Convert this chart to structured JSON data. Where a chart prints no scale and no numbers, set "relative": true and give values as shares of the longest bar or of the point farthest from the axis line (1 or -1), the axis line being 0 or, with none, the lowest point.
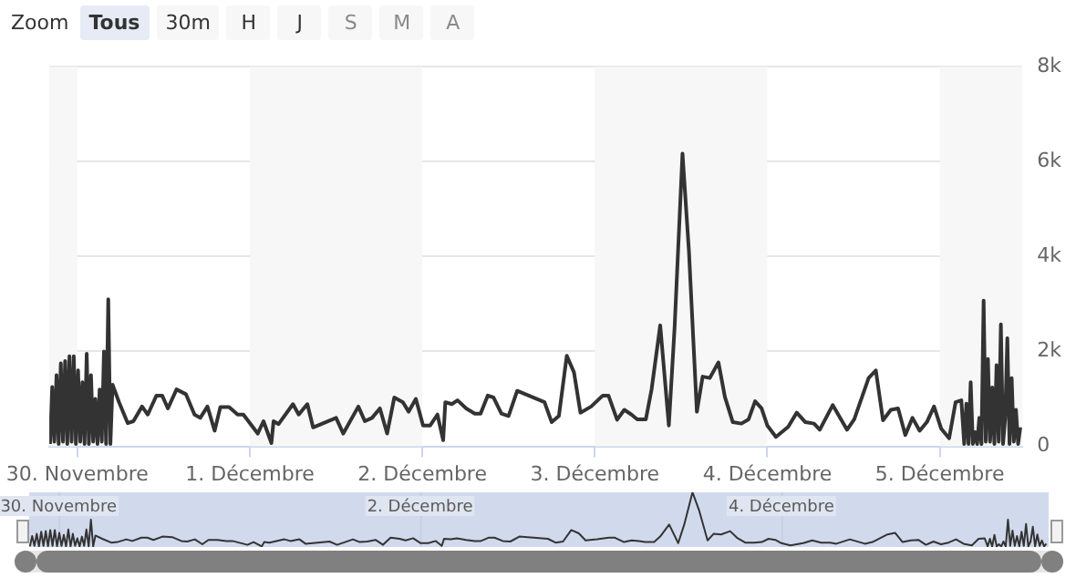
{
  "chart_data": [
    {
      "type": "line",
      "x": [
        "--11-29T20:12",
        "--11-29T20:30",
        "--11-29T20:48",
        "--11-29T21:06",
        "--11-29T21:24",
        "--11-29T21:42",
        "--11-29T22:00",
        "--11-29T22:18",
        "--11-29T22:36",
        "--11-29T22:54",
        "--11-29T23:12",
        "--11-29T23:30",
        "--11-29T23:48",
        "--11-30T00:06",
        "--11-30T00:24",
        "--11-30T00:42",
        "--11-30T01:00",
        "--11-30T01:18",
        "--11-30T01:36",
        "--11-30T01:54",
        "--11-30T02:12",
        "--11-30T02:30",
        "--11-30T02:48",
        "--11-30T03:06",
        "--11-30T03:24",
        "--11-30T03:42",
        "--11-30T04:00",
        "--11-30T04:18",
        "--11-30T04:36",
        "--11-30T04:54",
        "--11-30T05:48",
        "--11-30T07:00",
        "--11-30T07:48",
        "--11-30T09:00",
        "--11-30T09:48",
        "--11-30T11:00",
        "--11-30T11:48",
        "--11-30T12:36",
        "--11-30T13:48",
        "--11-30T15:06",
        "--11-30T16:18",
        "--11-30T17:06",
        "--11-30T18:06",
        "--11-30T19:06",
        "--11-30T19:54",
        "--11-30T21:06",
        "--11-30T22:18",
        "--11-30T23:06",
        "--12-01T01:06",
        "--12-01T01:54",
        "--12-01T03:00",
        "--12-01T03:18",
        "--12-01T04:00",
        "--12-01T06:00",
        "--12-01T06:48",
        "--12-01T08:00",
        "--12-01T08:48",
        "--12-01T12:00",
        "--12-01T13:00",
        "--12-01T15:06",
        "--12-01T16:00",
        "--12-01T17:00",
        "--12-01T18:06",
        "--12-01T19:06",
        "--12-01T20:06",
        "--12-01T21:18",
        "--12-01T22:06",
        "--12-01T23:06",
        "--12-02T00:06",
        "--12-02T01:06",
        "--12-02T02:06",
        "--12-02T02:54",
        "--12-02T03:12",
        "--12-02T04:06",
        "--12-02T04:54",
        "--12-02T06:06",
        "--12-02T07:18",
        "--12-02T08:06",
        "--12-02T09:06",
        "--12-02T09:54",
        "--12-02T11:00",
        "--12-02T12:00",
        "--12-02T13:12",
        "--12-02T17:00",
        "--12-02T18:00",
        "--12-02T19:00",
        "--12-02T20:06",
        "--12-02T21:06",
        "--12-02T22:00",
        "--12-02T23:30",
        "--12-03T01:06",
        "--12-03T01:54",
        "--12-03T03:06",
        "--12-03T04:06",
        "--12-03T05:06",
        "--12-03T05:54",
        "--12-03T07:06",
        "--12-03T07:54",
        "--12-03T09:06",
        "--12-03T10:18",
        "--12-03T11:06",
        "--12-03T12:12",
        "--12-03T13:06",
        "--12-03T14:12",
        "--12-03T15:00",
        "--12-03T16:00",
        "--12-03T17:12",
        "--12-03T18:06",
        "--12-03T19:12",
        "--12-03T20:24",
        "--12-03T21:24",
        "--12-03T22:18",
        "--12-03T23:12",
        "--12-04T00:00",
        "--12-04T01:12",
        "--12-04T02:54",
        "--12-04T04:06",
        "--12-04T05:18",
        "--12-04T06:30",
        "--12-04T07:18",
        "--12-04T09:06",
        "--12-04T11:06",
        "--12-04T12:06",
        "--12-04T14:06",
        "--12-04T15:06",
        "--12-04T16:06",
        "--12-04T17:12",
        "--12-04T18:12",
        "--12-04T19:12",
        "--12-04T20:12",
        "--12-04T21:12",
        "--12-04T22:12",
        "--12-04T23:12",
        "--12-05T00:12",
        "--12-05T01:18",
        "--12-05T02:12",
        "--12-05T03:00",
        "--12-05T03:24",
        "--12-05T03:42",
        "--12-05T04:00",
        "--12-05T04:18",
        "--12-05T04:36",
        "--12-05T04:54",
        "--12-05T05:12",
        "--12-05T05:30",
        "--12-05T05:48",
        "--12-05T06:06",
        "--12-05T06:24",
        "--12-05T06:42",
        "--12-05T07:00",
        "--12-05T07:18",
        "--12-05T07:36",
        "--12-05T07:54",
        "--12-05T08:12",
        "--12-05T08:30",
        "--12-05T08:48",
        "--12-05T09:06",
        "--12-05T09:24",
        "--12-05T09:42",
        "--12-05T10:00",
        "--12-05T10:18",
        "--12-05T10:36",
        "--12-05T10:54",
        "--12-05T11:12"
      ],
      "series": [
        {
          "color": "#333333",
          "values": [
            50,
            1250,
            100,
            1500,
            50,
            1750,
            100,
            1800,
            50,
            1900,
            100,
            1900,
            50,
            1600,
            100,
            1350,
            50,
            1950,
            50,
            1500,
            100,
            1000,
            50,
            1200,
            100,
            2000,
            50,
            3100,
            50,
            1300,
            930,
            490,
            530,
            840,
            670,
            1070,
            1070,
            800,
            1200,
            1100,
            670,
            600,
            840,
            330,
            830,
            830,
            670,
            670,
            270,
            530,
            70,
            530,
            470,
            890,
            670,
            890,
            400,
            600,
            270,
            840,
            530,
            600,
            800,
            270,
            1030,
            930,
            730,
            1000,
            440,
            440,
            670,
            130,
            930,
            890,
            970,
            800,
            690,
            690,
            1070,
            1030,
            690,
            640,
            1170,
            930,
            510,
            640,
            1910,
            1560,
            710,
            840,
            1070,
            1070,
            560,
            770,
            670,
            570,
            570,
            1200,
            2550,
            440,
            2500,
            6170,
            4100,
            730,
            1470,
            1440,
            1770,
            1040,
            510,
            480,
            570,
            950,
            800,
            440,
            200,
            410,
            710,
            510,
            480,
            350,
            870,
            350,
            570,
            1440,
            1600,
            550,
            770,
            800,
            240,
            600,
            330,
            510,
            840,
            370,
            170,
            930,
            970,
            50,
            900,
            50,
            1350,
            50,
            300,
            50,
            600,
            50,
            3070,
            100,
            1840,
            100,
            1240,
            50,
            1710,
            100,
            2570,
            50,
            600,
            2280,
            50,
            1440,
            100,
            770,
            50,
            400
          ]
        }
      ],
      "xlim": [
        "--11-29T20:06",
        "--12-05T11:30"
      ],
      "xticks": [
        {
          "value": "--11-30",
          "label": "30. Novembre"
        },
        {
          "value": "--12-01",
          "label": "1. Décembre"
        },
        {
          "value": "--12-02",
          "label": "2. Décembre"
        },
        {
          "value": "--12-03",
          "label": "3. Décembre"
        },
        {
          "value": "--12-04",
          "label": "4. Décembre"
        },
        {
          "value": "--12-05",
          "label": "5. Décembre"
        }
      ],
      "ylim": [
        0,
        8000
      ],
      "yticks": [
        0,
        {
          "value": 2000,
          "label": "2k"
        },
        {
          "value": 4000,
          "label": "4k"
        },
        {
          "value": 6000,
          "label": "6k"
        },
        {
          "value": 8000,
          "label": "8k"
        }
      ],
      "bands": [
        {
          "axis": "x",
          "from": "--11-29T20:06",
          "to": "--11-30",
          "color": "#f7f7f7"
        },
        {
          "axis": "x",
          "from": "--12-01",
          "to": "--12-02",
          "color": "#f7f7f7"
        },
        {
          "axis": "x",
          "from": "--12-03",
          "to": "--12-04",
          "color": "#f7f7f7"
        },
        {
          "axis": "x",
          "from": "--12-05",
          "to": "--12-05T11:30",
          "color": "#f7f7f7"
        }
      ],
      "grid": "y",
      "marker": "none",
      "line_style": "solid",
      "annotations": [
        "Zoom",
        "Tous",
        "30m",
        "H",
        "J",
        "S",
        "M",
        "A"
      ]
    },
    {
      "type": "line",
      "x": [
        "--11-29T20:12",
        "--11-29T20:30",
        "--11-29T20:48",
        "--11-29T21:06",
        "--11-29T21:24",
        "--11-29T21:42",
        "--11-29T22:00",
        "--11-29T22:18",
        "--11-29T22:36",
        "--11-29T22:54",
        "--11-29T23:12",
        "--11-29T23:30",
        "--11-29T23:48",
        "--11-30T00:06",
        "--11-30T00:24",
        "--11-30T00:42",
        "--11-30T01:00",
        "--11-30T01:18",
        "--11-30T01:36",
        "--11-30T01:54",
        "--11-30T02:12",
        "--11-30T02:30",
        "--11-30T02:48",
        "--11-30T03:06",
        "--11-30T03:24",
        "--11-30T03:42",
        "--11-30T04:00",
        "--11-30T04:18",
        "--11-30T04:36",
        "--11-30T04:54",
        "--11-30T05:48",
        "--11-30T07:00",
        "--11-30T07:48",
        "--11-30T09:00",
        "--11-30T09:48",
        "--11-30T11:00",
        "--11-30T11:48",
        "--11-30T12:36",
        "--11-30T13:48",
        "--11-30T15:06",
        "--11-30T16:18",
        "--11-30T17:06",
        "--11-30T18:06",
        "--11-30T19:06",
        "--11-30T19:54",
        "--11-30T21:06",
        "--11-30T22:18",
        "--11-30T23:06",
        "--12-01T01:06",
        "--12-01T01:54",
        "--12-01T03:00",
        "--12-01T03:18",
        "--12-01T04:00",
        "--12-01T06:00",
        "--12-01T06:48",
        "--12-01T08:00",
        "--12-01T08:48",
        "--12-01T12:00",
        "--12-01T13:00",
        "--12-01T15:06",
        "--12-01T16:00",
        "--12-01T17:00",
        "--12-01T18:06",
        "--12-01T19:06",
        "--12-01T20:06",
        "--12-01T21:18",
        "--12-01T22:06",
        "--12-01T23:06",
        "--12-02T00:06",
        "--12-02T01:06",
        "--12-02T02:06",
        "--12-02T02:54",
        "--12-02T03:12",
        "--12-02T04:06",
        "--12-02T04:54",
        "--12-02T06:06",
        "--12-02T07:18",
        "--12-02T08:06",
        "--12-02T09:06",
        "--12-02T09:54",
        "--12-02T11:00",
        "--12-02T12:00",
        "--12-02T13:12",
        "--12-02T17:00",
        "--12-02T18:00",
        "--12-02T19:00",
        "--12-02T20:06",
        "--12-02T21:06",
        "--12-02T22:00",
        "--12-02T23:30",
        "--12-03T01:06",
        "--12-03T01:54",
        "--12-03T03:06",
        "--12-03T04:06",
        "--12-03T05:06",
        "--12-03T05:54",
        "--12-03T07:06",
        "--12-03T07:54",
        "--12-03T09:06",
        "--12-03T10:18",
        "--12-03T11:06",
        "--12-03T12:12",
        "--12-03T13:06",
        "--12-03T14:12",
        "--12-03T15:00",
        "--12-03T16:00",
        "--12-03T17:12",
        "--12-03T18:06",
        "--12-03T19:12",
        "--12-03T20:24",
        "--12-03T21:24",
        "--12-03T22:18",
        "--12-03T23:12",
        "--12-04T00:00",
        "--12-04T01:12",
        "--12-04T02:54",
        "--12-04T04:06",
        "--12-04T05:18",
        "--12-04T06:30",
        "--12-04T07:18",
        "--12-04T09:06",
        "--12-04T11:06",
        "--12-04T12:06",
        "--12-04T14:06",
        "--12-04T15:06",
        "--12-04T16:06",
        "--12-04T17:12",
        "--12-04T18:12",
        "--12-04T19:12",
        "--12-04T20:12",
        "--12-04T21:12",
        "--12-04T22:12",
        "--12-04T23:12",
        "--12-05T00:12",
        "--12-05T01:18",
        "--12-05T02:12",
        "--12-05T03:00",
        "--12-05T03:24",
        "--12-05T03:42",
        "--12-05T04:00",
        "--12-05T04:18",
        "--12-05T04:36",
        "--12-05T04:54",
        "--12-05T05:12",
        "--12-05T05:30",
        "--12-05T05:48",
        "--12-05T06:06",
        "--12-05T06:24",
        "--12-05T06:42",
        "--12-05T07:00",
        "--12-05T07:18",
        "--12-05T07:36",
        "--12-05T07:54",
        "--12-05T08:12",
        "--12-05T08:30",
        "--12-05T08:48",
        "--12-05T09:06",
        "--12-05T09:24",
        "--12-05T09:42",
        "--12-05T10:00",
        "--12-05T10:18",
        "--12-05T10:36",
        "--12-05T10:54",
        "--12-05T11:12"
      ],
      "series": [
        {
          "color": "#333333",
          "values": [
            0.01,
            0.2,
            0.02,
            0.24,
            0.01,
            0.28,
            0.02,
            0.29,
            0.01,
            0.31,
            0.02,
            0.31,
            0.01,
            0.26,
            0.02,
            0.22,
            0.01,
            0.32,
            0.01,
            0.24,
            0.02,
            0.16,
            0.01,
            0.19,
            0.02,
            0.32,
            0.01,
            0.5,
            0.01,
            0.21,
            0.15,
            0.08,
            0.09,
            0.14,
            0.11,
            0.17,
            0.17,
            0.13,
            0.19,
            0.18,
            0.11,
            0.1,
            0.14,
            0.05,
            0.13,
            0.13,
            0.11,
            0.11,
            0.04,
            0.09,
            0.01,
            0.09,
            0.08,
            0.14,
            0.11,
            0.14,
            0.06,
            0.1,
            0.04,
            0.14,
            0.09,
            0.1,
            0.13,
            0.04,
            0.17,
            0.15,
            0.12,
            0.16,
            0.07,
            0.07,
            0.11,
            0.02,
            0.15,
            0.14,
            0.16,
            0.13,
            0.11,
            0.11,
            0.17,
            0.17,
            0.11,
            0.1,
            0.19,
            0.15,
            0.08,
            0.1,
            0.31,
            0.25,
            0.12,
            0.14,
            0.17,
            0.17,
            0.09,
            0.12,
            0.11,
            0.09,
            0.09,
            0.19,
            0.41,
            0.07,
            0.41,
            1,
            0.66,
            0.12,
            0.24,
            0.23,
            0.29,
            0.17,
            0.08,
            0.08,
            0.09,
            0.15,
            0.13,
            0.07,
            0.03,
            0.07,
            0.12,
            0.08,
            0.08,
            0.06,
            0.14,
            0.06,
            0.09,
            0.23,
            0.26,
            0.09,
            0.12,
            0.13,
            0.04,
            0.1,
            0.05,
            0.08,
            0.14,
            0.06,
            0.03,
            0.15,
            0.16,
            0.01,
            0.15,
            0.01,
            0.22,
            0.01,
            0.05,
            0.01,
            0.1,
            0.01,
            0.5,
            0.02,
            0.3,
            0.02,
            0.2,
            0.01,
            0.28,
            0.02,
            0.42,
            0.01,
            0.1,
            0.37,
            0.01,
            0.23,
            0.02,
            0.12,
            0.01,
            0.06
          ]
        }
      ],
      "xlim": [
        "--11-29T20:06",
        "--12-05T11:30"
      ],
      "xticks": [
        {
          "value": "--11-30",
          "label": "30. Novembre"
        },
        {
          "value": "--12-02",
          "label": "2. Décembre"
        },
        {
          "value": "--12-04",
          "label": "4. Décembre"
        }
      ],
      "relative": true,
      "grid": "x",
      "marker": "none",
      "line_style": "solid"
    }
  ]
}
